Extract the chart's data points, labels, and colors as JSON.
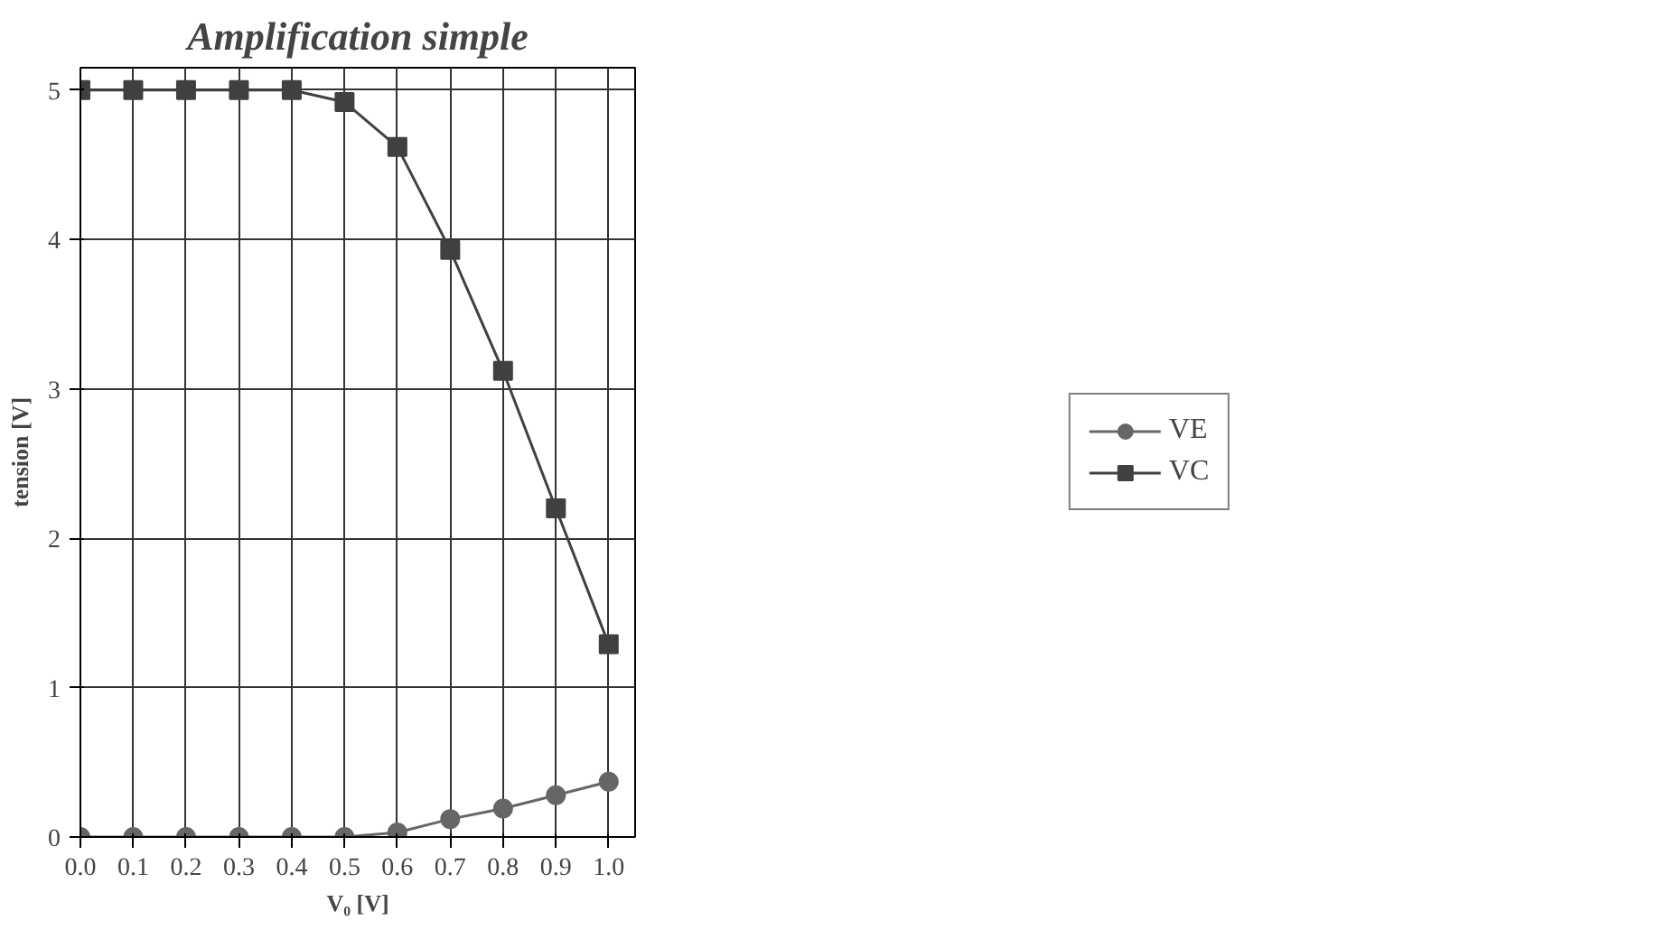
{
  "chart_data": {
    "type": "line",
    "title": "Amplification simple",
    "xlabel": "V₀ [V]",
    "ylabel": "tension [V]",
    "x": [
      0.0,
      0.1,
      0.2,
      0.3,
      0.4,
      0.5,
      0.6,
      0.7,
      0.8,
      0.9,
      1.0
    ],
    "series": [
      {
        "name": "VE",
        "color": "#666666",
        "marker": "circle",
        "values": [
          0,
          0,
          0,
          0,
          0,
          0,
          0.03,
          0.12,
          0.19,
          0.28,
          0.37
        ]
      },
      {
        "name": "VC",
        "color": "#404040",
        "marker": "square",
        "values": [
          5,
          5,
          5,
          5,
          5,
          4.92,
          4.62,
          3.93,
          3.12,
          2.2,
          1.29
        ]
      }
    ],
    "xlim": [
      0,
      1.05
    ],
    "ylim": [
      0,
      5.15
    ],
    "xticks": [
      {
        "value": 0,
        "label": "0.0"
      },
      {
        "value": 0.1,
        "label": "0.1"
      },
      {
        "value": 0.2,
        "label": "0.2"
      },
      {
        "value": 0.3,
        "label": "0.3"
      },
      {
        "value": 0.4,
        "label": "0.4"
      },
      {
        "value": 0.5,
        "label": "0.5"
      },
      {
        "value": 0.6,
        "label": "0.6"
      },
      {
        "value": 0.7,
        "label": "0.7"
      },
      {
        "value": 0.8,
        "label": "0.8"
      },
      {
        "value": 0.9,
        "label": "0.9"
      },
      {
        "value": 1.0,
        "label": "1.0"
      }
    ],
    "yticks": [
      0,
      1,
      2,
      3,
      4,
      5
    ],
    "grid": true,
    "legend": "right",
    "line_style": "solid"
  }
}
